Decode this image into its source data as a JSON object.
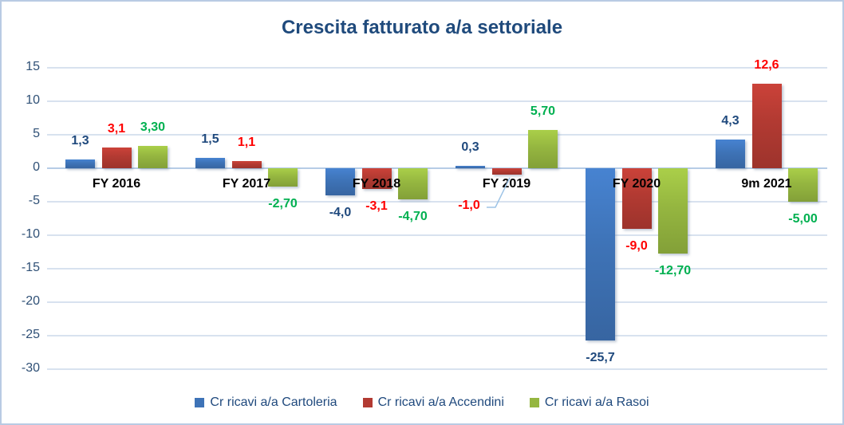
{
  "title": "Crescita fatturato a/a settoriale",
  "chart_data": {
    "type": "bar",
    "title": "Crescita fatturato a/a settoriale",
    "categories": [
      "FY 2016",
      "FY 2017",
      "FY 2018",
      "FY 2019",
      "FY 2020",
      "9m 2021"
    ],
    "series": [
      {
        "name": "Cr ricavi a/a Cartoleria",
        "key": "cartoleria",
        "color": "#3e73b7",
        "label_color": "#1f497d",
        "values": [
          1.3,
          1.5,
          -4.0,
          0.3,
          -25.7,
          4.3
        ],
        "labels": [
          "1,3",
          "1,5",
          "-4,0",
          "0,3",
          "-25,7",
          "4,3"
        ]
      },
      {
        "name": "Cr ricavi a/a Accendini",
        "key": "accendini",
        "color": "#b23a32",
        "label_color": "#ff0000",
        "values": [
          3.1,
          1.1,
          -3.1,
          -1.0,
          -9.0,
          12.6
        ],
        "labels": [
          "3,1",
          "1,1",
          "-3,1",
          "-1,0",
          "-9,0",
          "12,6"
        ]
      },
      {
        "name": "Cr ricavi a/a Rasoi",
        "key": "rasoi",
        "color": "#95b640",
        "label_color": "#00b050",
        "values": [
          3.3,
          -2.7,
          -4.7,
          5.7,
          -12.7,
          -5.0
        ],
        "labels": [
          "3,30",
          "-2,70",
          "-4,70",
          "5,70",
          "-12,70",
          "-5,00"
        ]
      }
    ],
    "y_ticks": [
      15,
      10,
      5,
      0,
      -5,
      -10,
      -15,
      -20,
      -25,
      -30
    ],
    "ylim": [
      -30,
      15
    ],
    "grid": true,
    "legend_position": "bottom"
  }
}
